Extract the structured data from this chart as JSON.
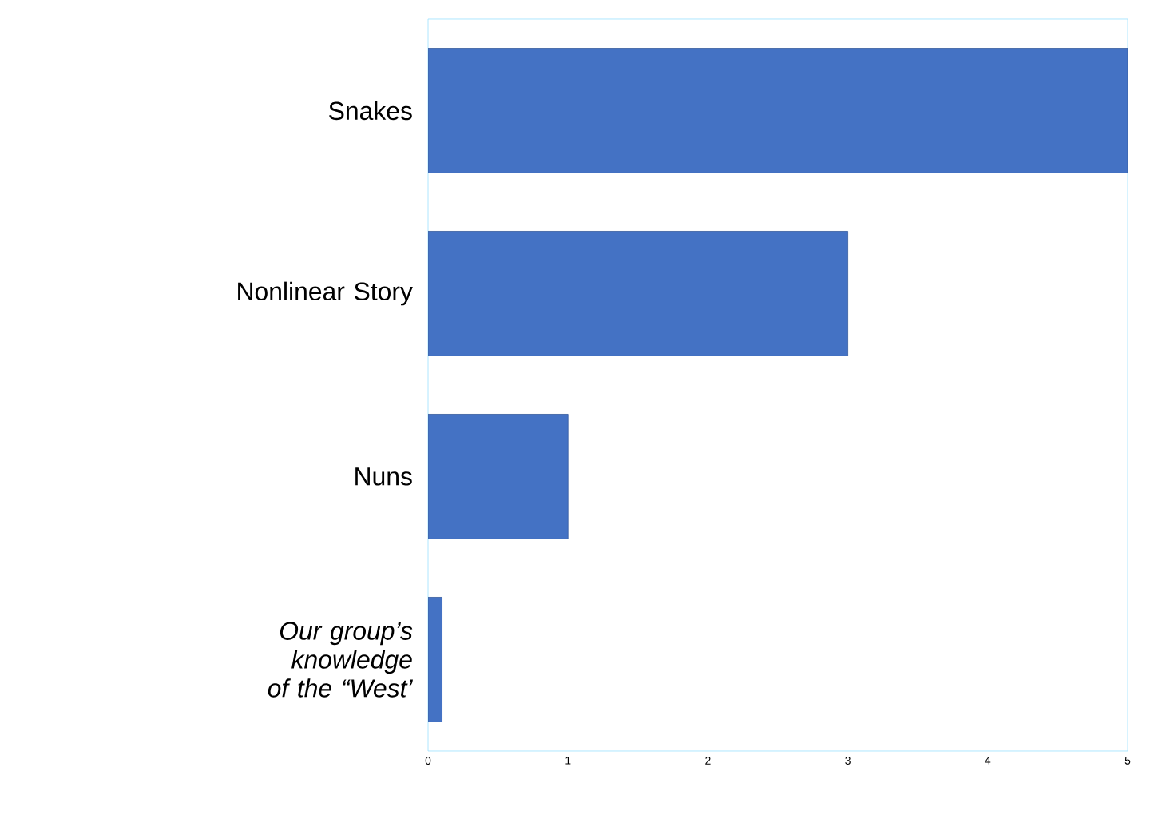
{
  "chart_data": {
    "type": "bar",
    "orientation": "horizontal",
    "categories": [
      "Snakes",
      "Nonlinear Story",
      "Nuns",
      "*Our group’s knowledge of the “West’*"
    ],
    "values": [
      5,
      3,
      1,
      0.1
    ],
    "color": "#4472c4",
    "xlim": [
      0,
      5
    ],
    "xticks": [
      0,
      1,
      2,
      3,
      4,
      5
    ]
  }
}
